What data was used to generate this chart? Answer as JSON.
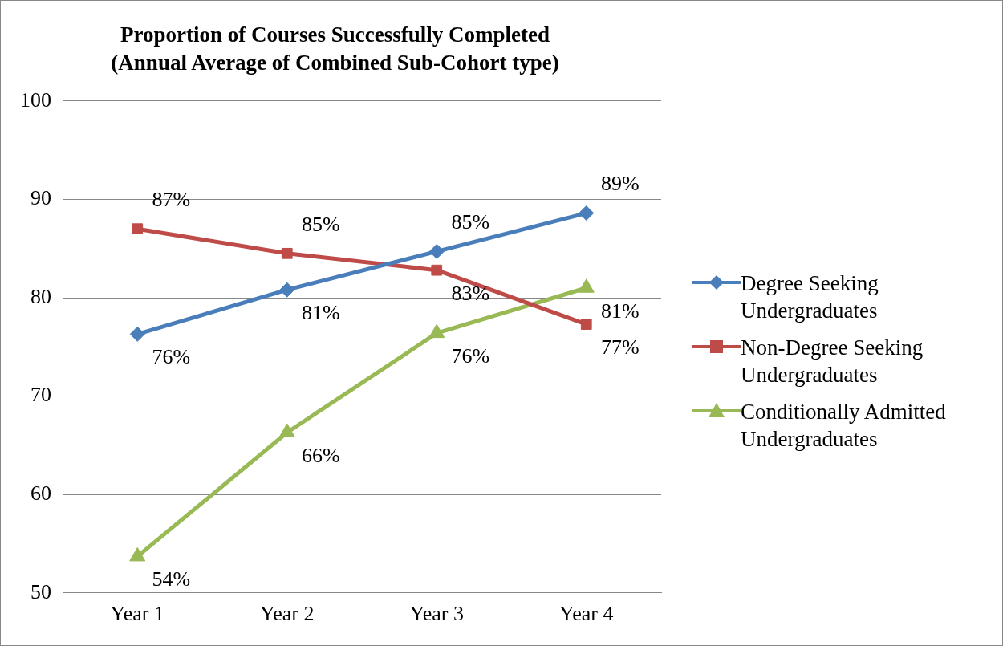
{
  "chart_data": {
    "type": "line",
    "title": "Proportion of Courses Successfully Completed",
    "subtitle": "(Annual Average of Combined Sub-Cohort type)",
    "categories": [
      "Year 1",
      "Year 2",
      "Year 3",
      "Year 4"
    ],
    "series": [
      {
        "name": "Degree Seeking Undergraduates",
        "color": "#4a7ebb",
        "marker": "diamond",
        "values": [
          76.3,
          80.8,
          84.7,
          88.6
        ],
        "value_labels": [
          "76%",
          "81%",
          "85%",
          "89%"
        ]
      },
      {
        "name": "Non-Degree Seeking Undergraduates",
        "color": "#be4b48",
        "marker": "square",
        "values": [
          87.0,
          84.5,
          82.8,
          77.3
        ],
        "value_labels": [
          "87%",
          "85%",
          "83%",
          "77%"
        ]
      },
      {
        "name": "Conditionally Admitted Undergraduates",
        "color": "#98b954",
        "marker": "triangle",
        "values": [
          53.7,
          66.3,
          76.4,
          81.0
        ],
        "value_labels": [
          "54%",
          "66%",
          "76%",
          "81%"
        ]
      }
    ],
    "ylim": [
      50,
      100
    ],
    "yticks": [
      50,
      60,
      70,
      80,
      90,
      100
    ],
    "grid": "y",
    "legend": "right"
  }
}
